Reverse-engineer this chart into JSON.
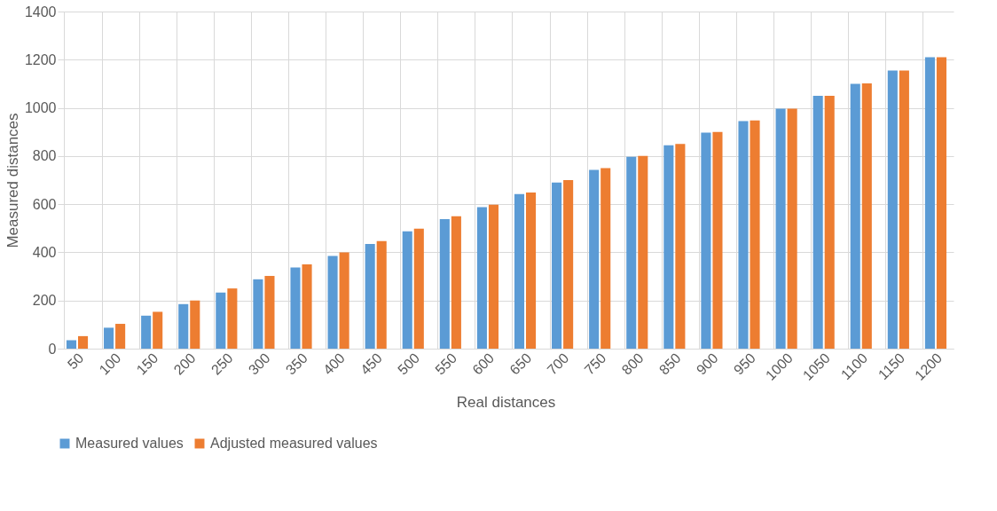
{
  "chart_data": {
    "type": "bar",
    "xlabel": "Real distances",
    "ylabel": "Measured distances",
    "categories": [
      "50",
      "100",
      "150",
      "200",
      "250",
      "300",
      "350",
      "400",
      "450",
      "500",
      "550",
      "600",
      "650",
      "700",
      "750",
      "800",
      "850",
      "900",
      "950",
      "1000",
      "1050",
      "1100",
      "1150",
      "1200"
    ],
    "series": [
      {
        "name": "Measured values",
        "color": "#5b9bd5",
        "values": [
          35,
          87,
          137,
          185,
          233,
          288,
          337,
          385,
          435,
          487,
          538,
          588,
          642,
          690,
          742,
          797,
          845,
          897,
          945,
          997,
          1050,
          1100,
          1155,
          1210
        ]
      },
      {
        "name": "Adjusted measured values",
        "color": "#ed7d31",
        "values": [
          52,
          103,
          153,
          200,
          250,
          302,
          350,
          400,
          447,
          498,
          550,
          598,
          648,
          700,
          750,
          800,
          850,
          900,
          948,
          997,
          1050,
          1102,
          1155,
          1210
        ]
      }
    ],
    "ylim": [
      0,
      1400
    ],
    "yticks": [
      0,
      200,
      400,
      600,
      800,
      1000,
      1200,
      1400
    ],
    "grid": true,
    "legend": "bottom"
  }
}
